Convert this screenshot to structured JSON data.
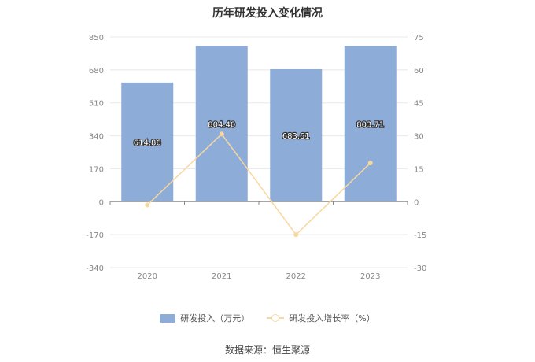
{
  "title": "历年研发投入变化情况",
  "source": "数据来源：恒生聚源",
  "colors": {
    "bar": "#8eacd8",
    "line": "#f8d79e",
    "grid": "#e8e8e8",
    "axis": "#888888"
  },
  "legend": {
    "bar_label": "研发投入（万元）",
    "line_label": "研发投入增长率（%）"
  },
  "chart_data": {
    "type": "bar",
    "categories": [
      "2020",
      "2021",
      "2022",
      "2023"
    ],
    "series": [
      {
        "name": "研发投入（万元）",
        "type": "bar",
        "axis": "left",
        "values": [
          614.86,
          804.4,
          683.61,
          803.71
        ],
        "labels": [
          "614.86",
          "804.40",
          "683.61",
          "803.71"
        ]
      },
      {
        "name": "研发投入增长率（%）",
        "type": "line",
        "axis": "right",
        "values": [
          -1.5,
          30.8,
          -15.0,
          17.6
        ]
      }
    ],
    "y_left": {
      "min": -340,
      "max": 850,
      "ticks": [
        "-340",
        "-170",
        "0",
        "170",
        "340",
        "510",
        "680",
        "850"
      ]
    },
    "y_right": {
      "min": -30,
      "max": 75,
      "ticks": [
        "-30",
        "-15",
        "0",
        "15",
        "30",
        "45",
        "60",
        "75"
      ]
    },
    "grid": true,
    "legend_position": "bottom"
  }
}
